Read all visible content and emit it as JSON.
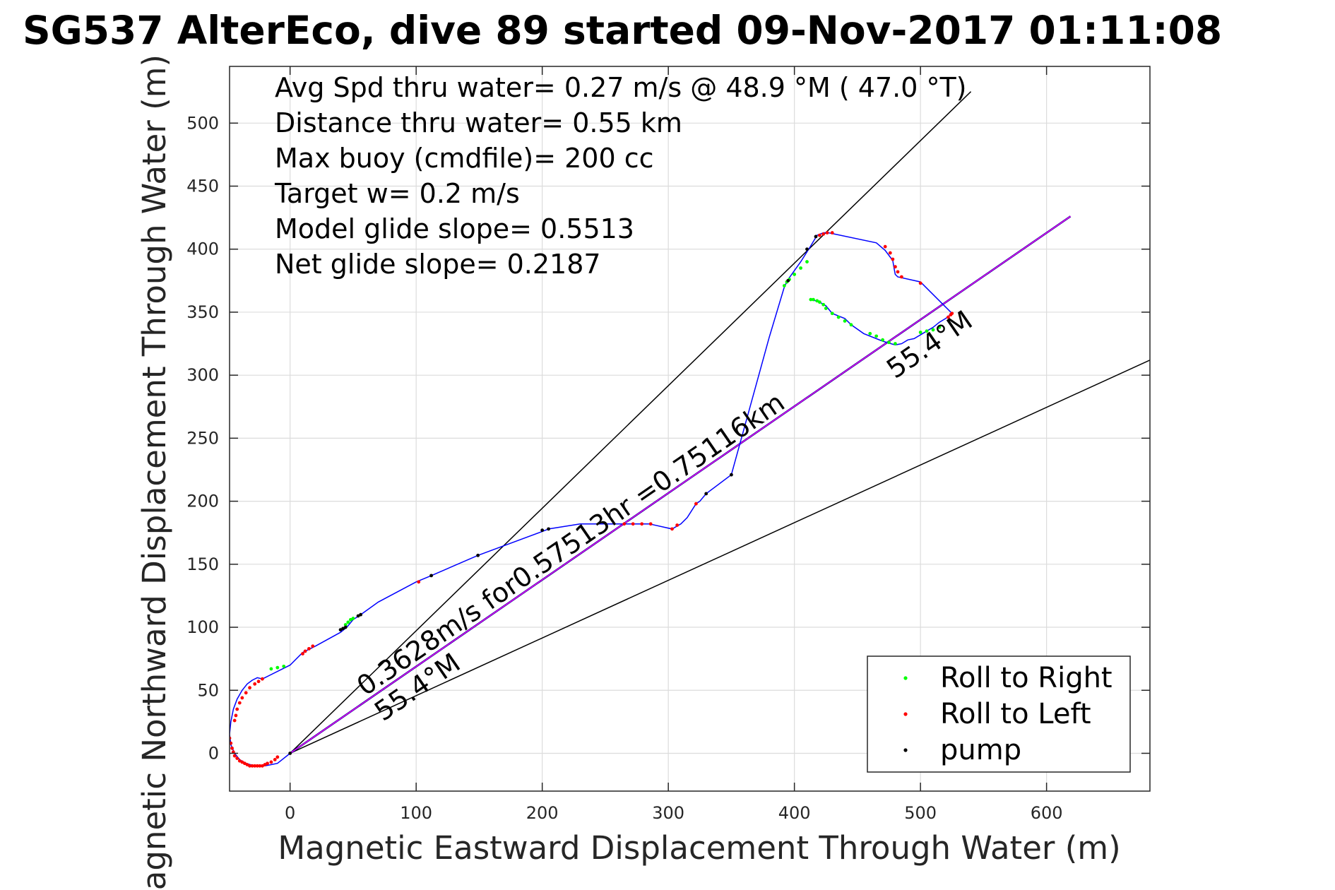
{
  "chart_data": {
    "type": "line",
    "title": "SG537 AlterEco, dive 89 started 09-Nov-2017 01:11:08",
    "xlabel": "Magnetic Eastward Displacement Through Water (m)",
    "ylabel": "Magnetic Northward Displacement Through Water (m)",
    "xlim": [
      -48,
      682
    ],
    "ylim": [
      -30,
      545
    ],
    "xticks": [
      0,
      100,
      200,
      300,
      400,
      500,
      600
    ],
    "yticks": [
      0,
      50,
      100,
      150,
      200,
      250,
      300,
      350,
      400,
      450,
      500
    ],
    "grid": true,
    "info_lines": [
      "Avg Spd thru water=  0.27 m/s @  48.9 °M ( 47.0 °T)",
      "Distance thru water=  0.55 km",
      "Max buoy (cmdfile)= 200 cc",
      "Target w= 0.2 m/s",
      "Model glide slope= 0.5513",
      "Net glide slope= 0.2187"
    ],
    "track": {
      "color": "#0000ff",
      "x": [
        0,
        -10,
        -20,
        -28,
        -35,
        -40,
        -44,
        -47,
        -48,
        -47,
        -45,
        -42,
        -38,
        -34,
        -30,
        -26,
        -22,
        -20,
        0,
        10,
        20,
        40,
        45,
        50,
        56,
        70,
        100,
        112,
        149,
        200,
        205,
        230,
        270,
        285,
        303,
        310,
        315,
        322,
        325,
        330,
        350,
        380,
        392,
        395,
        405,
        412,
        418,
        423,
        427,
        465,
        472,
        478,
        479,
        480,
        482,
        500,
        525,
        520,
        515,
        510,
        505,
        495,
        490,
        485,
        480,
        470,
        455,
        445,
        440,
        430,
        425,
        420,
        417,
        413
      ],
      "y": [
        0,
        -8,
        -10,
        -10,
        -8,
        -5,
        0,
        7,
        15,
        25,
        35,
        43,
        50,
        55,
        58,
        60,
        59,
        60,
        70,
        80,
        85,
        96,
        100,
        106,
        110,
        120,
        136,
        141,
        157,
        176,
        178,
        182,
        182,
        182,
        178,
        182,
        187,
        198,
        200,
        206,
        221,
        330,
        370,
        376,
        390,
        401,
        411,
        413,
        413,
        405,
        399,
        391,
        385,
        380,
        378,
        374,
        349,
        345,
        342,
        338,
        335,
        329,
        328,
        325,
        324,
        327,
        333,
        340,
        345,
        349,
        355,
        358,
        359,
        360
      ]
    },
    "roll_right": {
      "color": "#00ff00",
      "name": "Roll to Right",
      "x": [
        -15,
        -10,
        -5,
        44,
        46,
        48,
        50,
        392,
        394,
        396,
        400,
        405,
        410,
        413,
        415,
        418,
        420,
        423,
        425,
        430,
        435,
        440,
        445,
        460,
        465,
        470,
        475,
        480,
        500,
        505,
        510,
        515
      ],
      "y": [
        67,
        68,
        69,
        102,
        104,
        106,
        107,
        371,
        374,
        376,
        380,
        385,
        390,
        360,
        360,
        359,
        358,
        356,
        353,
        349,
        346,
        343,
        340,
        333,
        331,
        328,
        326,
        325,
        334,
        335,
        336,
        338
      ]
    },
    "roll_left": {
      "color": "#ff0000",
      "name": "Roll to Left",
      "x": [
        -48,
        -47,
        -46,
        -45,
        -44,
        -42,
        -40,
        -38,
        -36,
        -34,
        -32,
        -30,
        -28,
        -26,
        -24,
        -22,
        -20,
        -18,
        -15,
        -12,
        -10,
        -44,
        -43,
        -42,
        -40,
        -38,
        -35,
        -32,
        -28,
        -25,
        -22,
        10,
        12,
        15,
        18,
        102,
        265,
        272,
        279,
        286,
        303,
        307,
        322,
        420,
        423,
        426,
        430,
        472,
        476,
        478,
        480,
        482,
        485,
        500,
        522,
        524,
        525
      ],
      "y": [
        12,
        8,
        4,
        1,
        -2,
        -4,
        -6,
        -7,
        -8,
        -9,
        -10,
        -10,
        -10,
        -10,
        -10,
        -10,
        -9,
        -8,
        -7,
        -5,
        -3,
        26,
        30,
        35,
        40,
        44,
        48,
        52,
        55,
        57,
        59,
        79,
        81,
        83,
        85,
        136,
        182,
        182,
        182,
        182,
        178,
        181,
        198,
        411,
        412,
        413,
        413,
        402,
        397,
        392,
        386,
        382,
        378,
        373,
        346,
        348,
        349
      ]
    },
    "pump": {
      "color": "#000000",
      "name": "pump",
      "x": [
        0,
        40,
        42,
        44,
        54,
        56,
        112,
        149,
        200,
        205,
        330,
        350,
        395,
        410,
        417
      ],
      "y": [
        0,
        98,
        99,
        100,
        109,
        110,
        141,
        157,
        177,
        178,
        206,
        221,
        375,
        400,
        410
      ]
    },
    "model_line": {
      "color": "#ff00ff",
      "x": [
        0,
        619
      ],
      "y": [
        0,
        426
      ]
    },
    "cone_upper": {
      "color": "#000000",
      "x": [
        0,
        540
      ],
      "y": [
        0,
        525
      ]
    },
    "cone_lower": {
      "color": "#000000",
      "x": [
        0,
        682
      ],
      "y": [
        0,
        312
      ]
    },
    "navy_line": {
      "color": "#00008b",
      "x": [
        0,
        619
      ],
      "y": [
        0,
        426
      ]
    },
    "annotations": {
      "speed": "0.3628m/s for0.57513hr =0.75116km",
      "heading_lower": "55.4°M",
      "heading_upper": "55.4°M"
    },
    "legend": {
      "placement": "bottom-right",
      "items": [
        {
          "label": "Roll to Right",
          "color": "#00ff00"
        },
        {
          "label": "Roll to Left",
          "color": "#ff0000"
        },
        {
          "label": "pump",
          "color": "#000000"
        }
      ]
    }
  }
}
